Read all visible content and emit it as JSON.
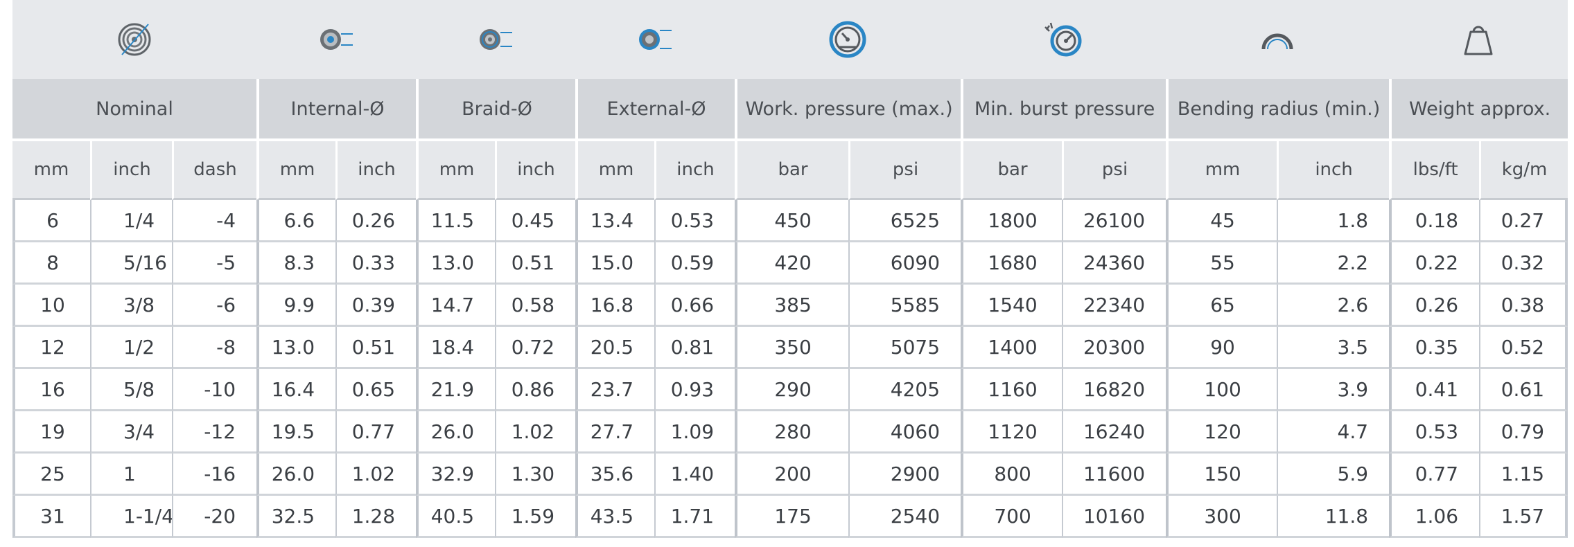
{
  "icons": [
    "hose-coil-icon",
    "internal-diameter-icon",
    "braid-diameter-icon",
    "external-diameter-icon",
    "working-pressure-gauge-icon",
    "burst-pressure-gauge-icon",
    "bending-radius-icon",
    "weight-icon"
  ],
  "groups": [
    "Nominal",
    "Internal-Ø",
    "Braid-Ø",
    "External-Ø",
    "Work. pressure (max.)",
    "Min. burst pressure",
    "Bending radius (min.)",
    "Weight approx."
  ],
  "units": [
    "mm",
    "inch",
    "dash",
    "mm",
    "inch",
    "mm",
    "inch",
    "mm",
    "inch",
    "bar",
    "psi",
    "bar",
    "psi",
    "mm",
    "inch",
    "lbs/ft",
    "kg/m"
  ],
  "rows": [
    [
      "6",
      "1/4",
      "-4",
      "6.6",
      "0.26",
      "11.5",
      "0.45",
      "13.4",
      "0.53",
      "450",
      "6525",
      "1800",
      "26100",
      "45",
      "1.8",
      "0.18",
      "0.27"
    ],
    [
      "8",
      "5/16",
      "-5",
      "8.3",
      "0.33",
      "13.0",
      "0.51",
      "15.0",
      "0.59",
      "420",
      "6090",
      "1680",
      "24360",
      "55",
      "2.2",
      "0.22",
      "0.32"
    ],
    [
      "10",
      "3/8",
      "-6",
      "9.9",
      "0.39",
      "14.7",
      "0.58",
      "16.8",
      "0.66",
      "385",
      "5585",
      "1540",
      "22340",
      "65",
      "2.6",
      "0.26",
      "0.38"
    ],
    [
      "12",
      "1/2",
      "-8",
      "13.0",
      "0.51",
      "18.4",
      "0.72",
      "20.5",
      "0.81",
      "350",
      "5075",
      "1400",
      "20300",
      "90",
      "3.5",
      "0.35",
      "0.52"
    ],
    [
      "16",
      "5/8",
      "-10",
      "16.4",
      "0.65",
      "21.9",
      "0.86",
      "23.7",
      "0.93",
      "290",
      "4205",
      "1160",
      "16820",
      "100",
      "3.9",
      "0.41",
      "0.61"
    ],
    [
      "19",
      "3/4",
      "-12",
      "19.5",
      "0.77",
      "26.0",
      "1.02",
      "27.7",
      "1.09",
      "280",
      "4060",
      "1120",
      "16240",
      "120",
      "4.7",
      "0.53",
      "0.79"
    ],
    [
      "25",
      "1",
      "-16",
      "26.0",
      "1.02",
      "32.9",
      "1.30",
      "35.6",
      "1.40",
      "200",
      "2900",
      "800",
      "11600",
      "150",
      "5.9",
      "0.77",
      "1.15"
    ],
    [
      "31",
      "1-1/4",
      "-20",
      "32.5",
      "1.28",
      "40.5",
      "1.59",
      "43.5",
      "1.71",
      "175",
      "2540",
      "700",
      "10160",
      "300",
      "11.8",
      "1.06",
      "1.57"
    ]
  ],
  "colors": {
    "icon_band": "#e7e9ec",
    "group_header": "#d3d6da",
    "unit_header": "#e6e8eb",
    "accent_blue": "#2a86c5",
    "text": "#3f4348"
  }
}
